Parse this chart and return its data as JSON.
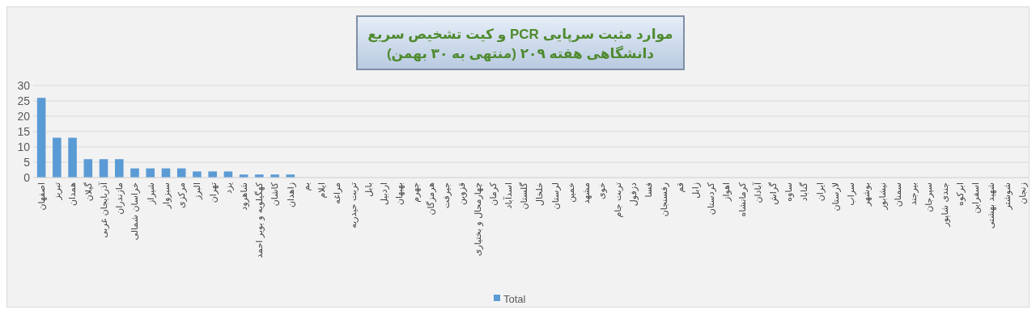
{
  "chart_data": {
    "type": "bar",
    "title": "موارد مثبت سرپایی PCR و کیت تشخیص سریع\nدانشگاهی هفته ۲۰۹ (منتهی به ۳۰ بهمن)",
    "categories": [
      "اصفهان",
      "تبریز",
      "همدان",
      "گیلان",
      "آذربایجان غربی",
      "مازندران",
      "خراسان شمالی",
      "شیراز",
      "سبزوار",
      "مرکزی",
      "البرز",
      "تهران",
      "یزد",
      "شاهرود",
      "کهگیلویه و بویر احمد",
      "کاشان",
      "زاهدان",
      "بم",
      "ایلام",
      "مراغه",
      "تربت حیدریه",
      "بابل",
      "اردبیل",
      "بهبهان",
      "جهرم",
      "هرمزگان",
      "جیرفت",
      "قزوین",
      "چهارمحال و بختیاری",
      "کرمان",
      "اسدآباد",
      "گلستان",
      "خلخال",
      "لرستان",
      "خمین",
      "مشهد",
      "خوی",
      "تربت جام",
      "دزفول",
      "فسا",
      "رفسنجان",
      "قم",
      "زابل",
      "کردستان",
      "اهواز",
      "کرمانشاه",
      "آبادان",
      "گراش",
      "ساوه",
      "گناباد",
      "ایران",
      "لارستان",
      "سراب",
      "بوشهر",
      "نیشابور",
      "سمنان",
      "بیرجند",
      "سیرجان",
      "جندی شاپور",
      "ابرکوه",
      "اسفراین",
      "شهید بهشتی",
      "شوشتر",
      "زنجان"
    ],
    "series": [
      {
        "name": "Total",
        "color": "#5b9bd5",
        "values": [
          26,
          13,
          13,
          6,
          6,
          6,
          3,
          3,
          3,
          3,
          2,
          2,
          2,
          1,
          1,
          1,
          1,
          0,
          0,
          0,
          0,
          0,
          0,
          0,
          0,
          0,
          0,
          0,
          0,
          0,
          0,
          0,
          0,
          0,
          0,
          0,
          0,
          0,
          0,
          0,
          0,
          0,
          0,
          0,
          0,
          0,
          0,
          0,
          0,
          0,
          0,
          0,
          0,
          0,
          0,
          0,
          0,
          0,
          0,
          0,
          0,
          0,
          0,
          0
        ]
      }
    ],
    "ylim": [
      0,
      30
    ],
    "yticks": [
      0,
      5,
      10,
      15,
      20,
      25,
      30
    ],
    "grid": "y",
    "legend": "bottom"
  }
}
